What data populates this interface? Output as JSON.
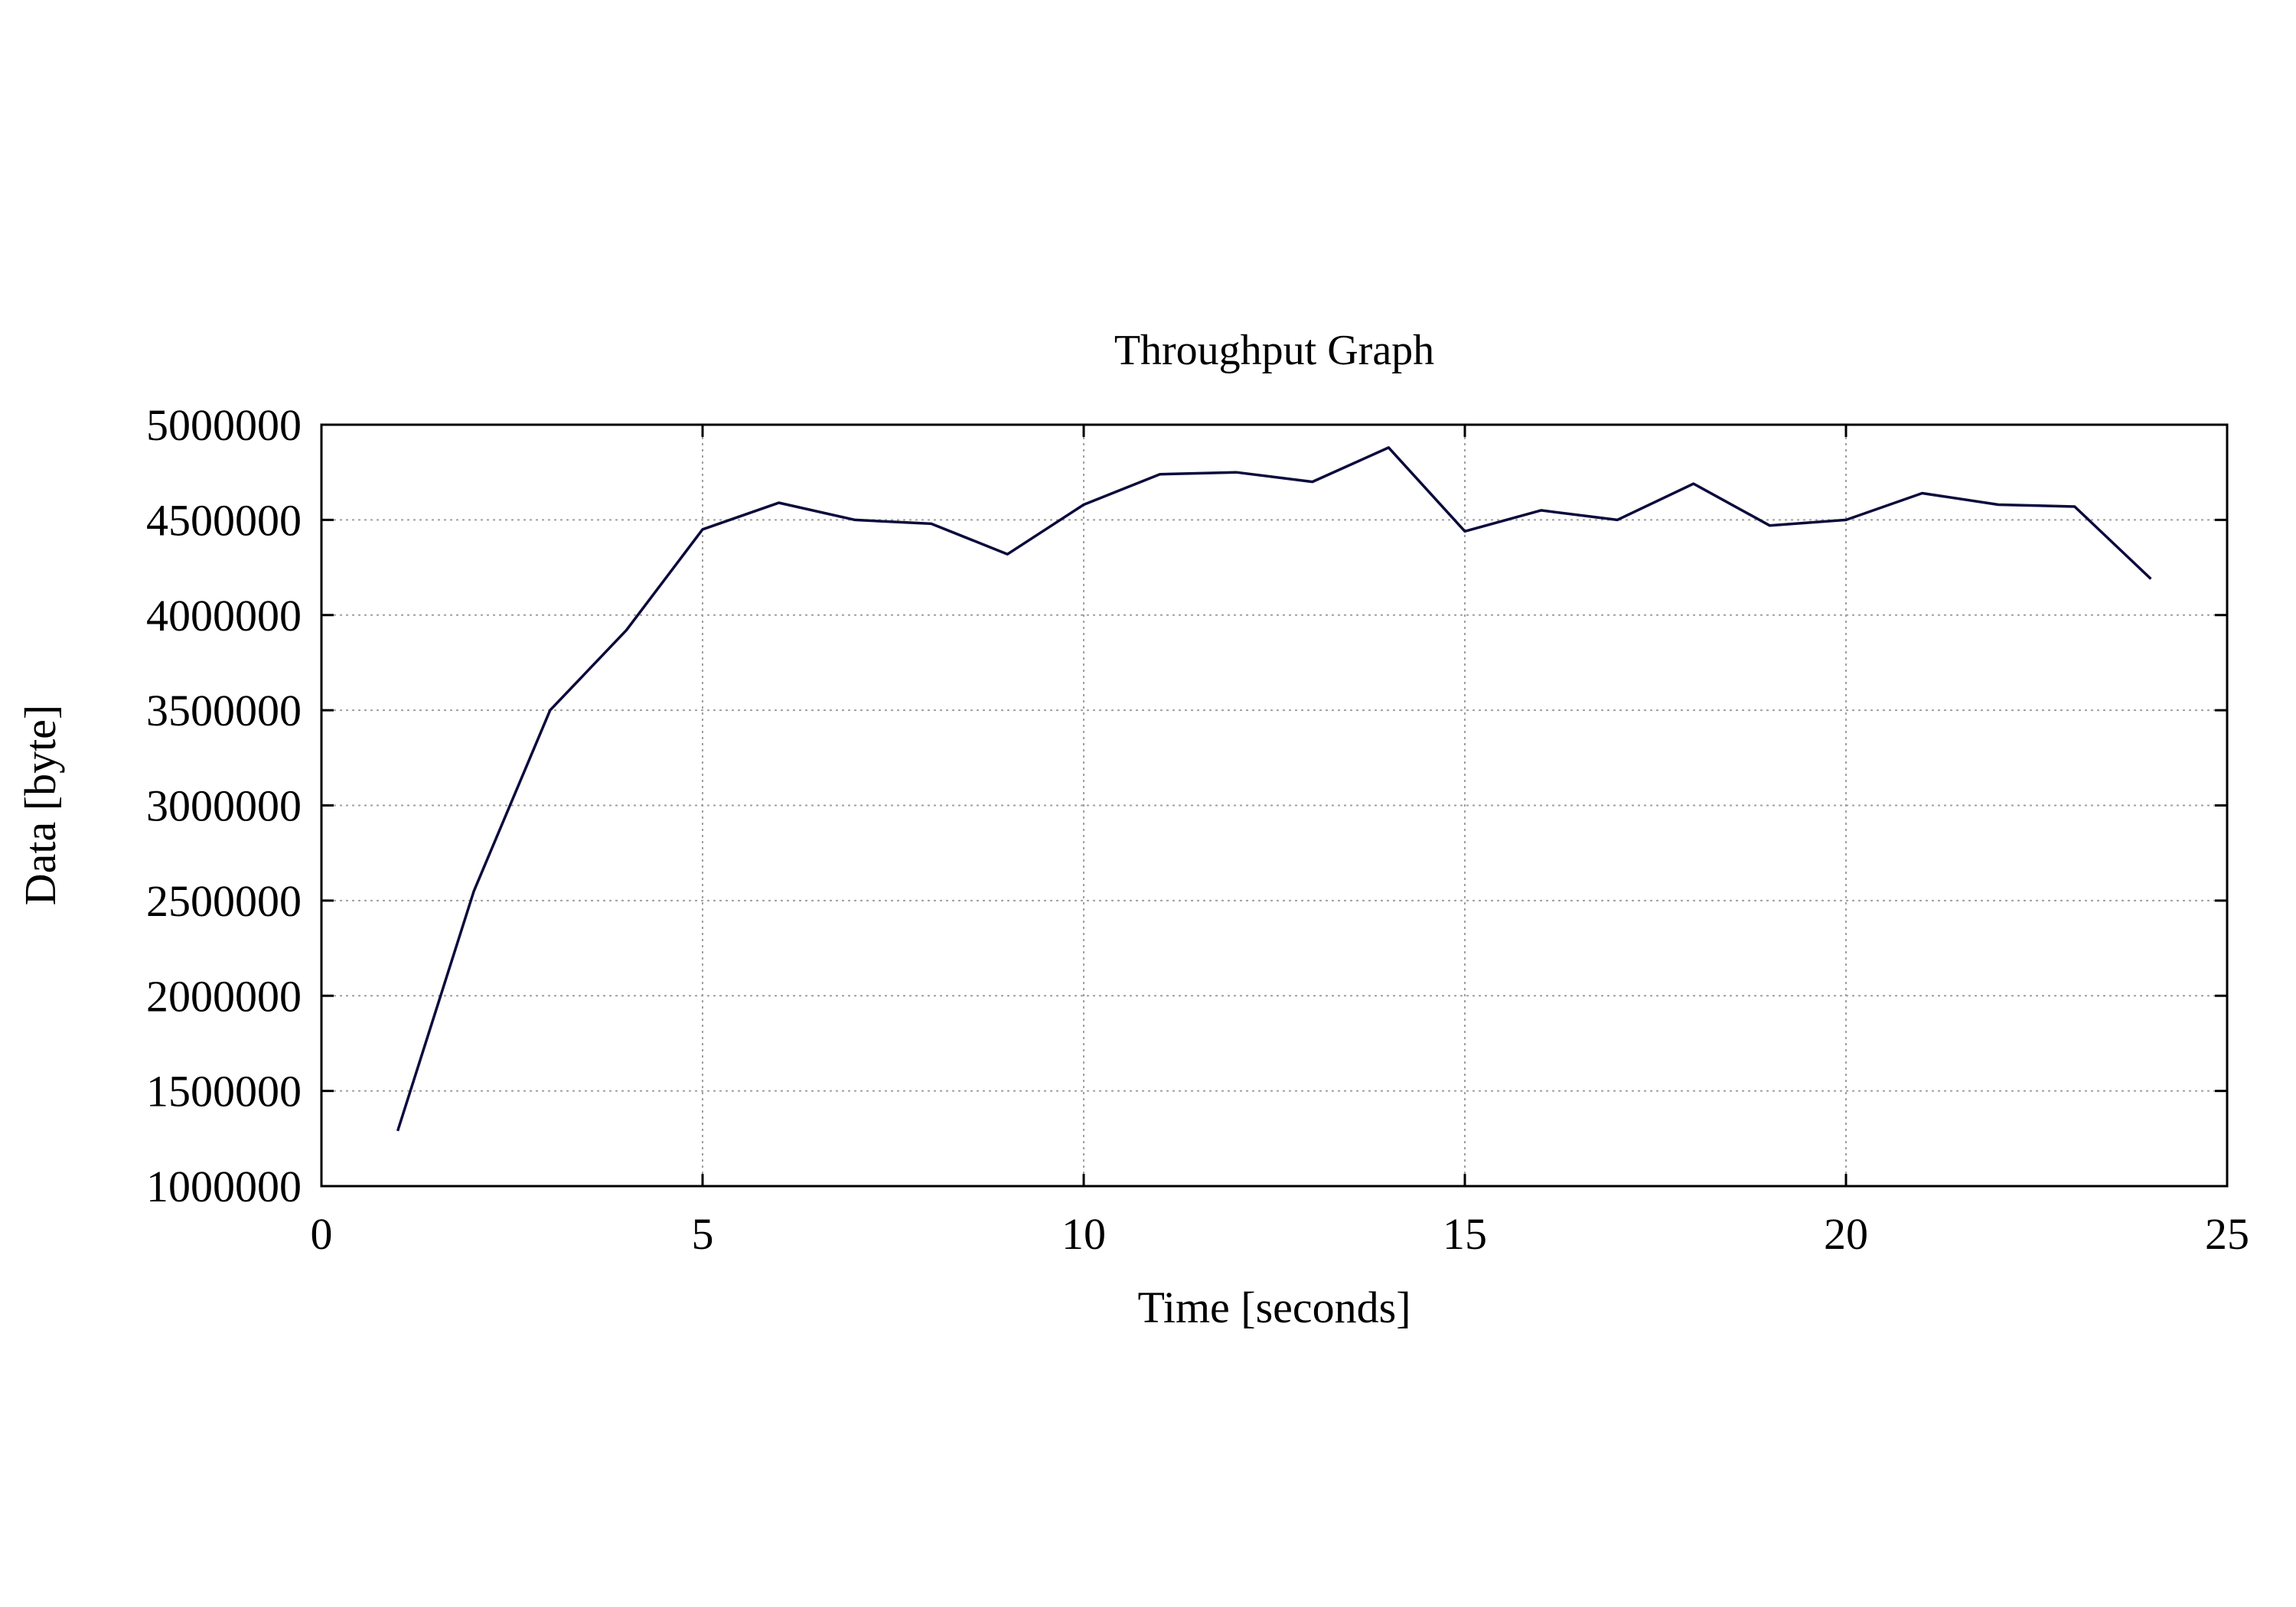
{
  "chart_data": {
    "type": "line",
    "title": "Throughput Graph",
    "xlabel": "Time [seconds]",
    "ylabel": "Data [byte]",
    "xlim": [
      0,
      25
    ],
    "ylim": [
      1000000,
      5000000
    ],
    "x_ticks": [
      0,
      5,
      10,
      15,
      20,
      25
    ],
    "y_ticks": [
      1000000,
      1500000,
      2000000,
      2500000,
      3000000,
      3500000,
      4000000,
      4500000,
      5000000
    ],
    "x_tick_labels": [
      "0",
      "5",
      "10",
      "15",
      "20",
      "25"
    ],
    "y_tick_labels": [
      "1000000",
      "1500000",
      "2000000",
      "2500000",
      "3000000",
      "3500000",
      "4000000",
      "4500000",
      "5000000"
    ],
    "grid": true,
    "series": [
      {
        "color": "#0a0a3c",
        "x": [
          1,
          2,
          3,
          4,
          5,
          6,
          7,
          8,
          9,
          10,
          11,
          12,
          13,
          14,
          15,
          16,
          17,
          18,
          19,
          20,
          21,
          22,
          23,
          24
        ],
        "y": [
          1290000,
          2550000,
          3500000,
          3920000,
          4450000,
          4590000,
          4500000,
          4480000,
          4320000,
          4580000,
          4740000,
          4750000,
          4700000,
          4880000,
          4440000,
          4550000,
          4500000,
          4690000,
          4470000,
          4500000,
          4640000,
          4580000,
          4570000,
          4190000
        ]
      }
    ]
  }
}
